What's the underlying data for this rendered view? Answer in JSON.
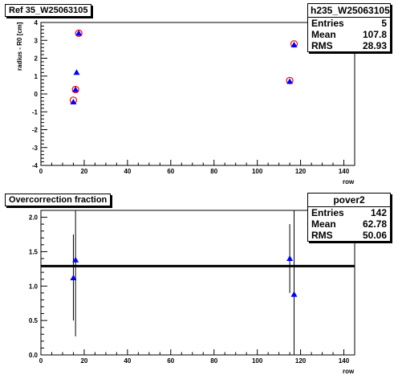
{
  "chart_data": [
    {
      "type": "scatter",
      "title": "Ref 35_W25063105",
      "xlabel": "row",
      "ylabel": "radius - R0 [cm]",
      "xlim": [
        0,
        145
      ],
      "ylim": [
        -4,
        4
      ],
      "xticks": [
        0,
        20,
        40,
        60,
        80,
        100,
        120,
        140
      ],
      "yticks": [
        -4,
        -3,
        -2,
        -1,
        0,
        1,
        2,
        3,
        4
      ],
      "stats": {
        "name": "h235_W25063105",
        "rows": [
          {
            "label": "Entries",
            "value": "5"
          },
          {
            "label": "Mean",
            "value": "107.8"
          },
          {
            "label": "RMS",
            "value": "28.93"
          }
        ]
      },
      "series": [
        {
          "marker": "open-circle",
          "color": "#ff0000",
          "points": [
            [
              15,
              -0.35
            ],
            [
              16,
              0.25
            ],
            [
              17.5,
              3.4
            ],
            [
              115,
              0.75
            ],
            [
              117,
              2.8
            ]
          ]
        },
        {
          "marker": "triangle",
          "color": "#0000ff",
          "points": [
            [
              15,
              -0.45
            ],
            [
              16,
              0.25
            ],
            [
              16.5,
              1.2
            ],
            [
              17.5,
              3.4
            ],
            [
              115,
              0.7
            ],
            [
              117,
              2.75
            ]
          ]
        }
      ]
    },
    {
      "type": "scatter",
      "title": "Overcorrection fraction",
      "xlabel": "row",
      "ylabel": "",
      "xlim": [
        0,
        145
      ],
      "ylim": [
        0,
        2.1
      ],
      "xticks": [
        0,
        20,
        40,
        60,
        80,
        100,
        120,
        140
      ],
      "yticks": [
        0,
        0.5,
        1,
        1.5,
        2
      ],
      "reference_line": 1.29,
      "stats": {
        "name": "pover2",
        "rows": [
          {
            "label": "Entries",
            "value": "142"
          },
          {
            "label": "Mean",
            "value": "62.78"
          },
          {
            "label": "RMS",
            "value": "50.06"
          }
        ]
      },
      "series": [
        {
          "marker": "triangle",
          "color": "#0000ff",
          "points": [
            {
              "x": 15,
              "y": 1.12,
              "ylo": 0.5,
              "yhi": 1.75
            },
            {
              "x": 16,
              "y": 1.38,
              "ylo": 0.27,
              "yhi": 2.1
            },
            {
              "x": 115,
              "y": 1.4,
              "ylo": 0.9,
              "yhi": 1.9
            },
            {
              "x": 117,
              "y": 0.88,
              "ylo": 0.0,
              "yhi": 2.1
            }
          ]
        }
      ]
    }
  ]
}
